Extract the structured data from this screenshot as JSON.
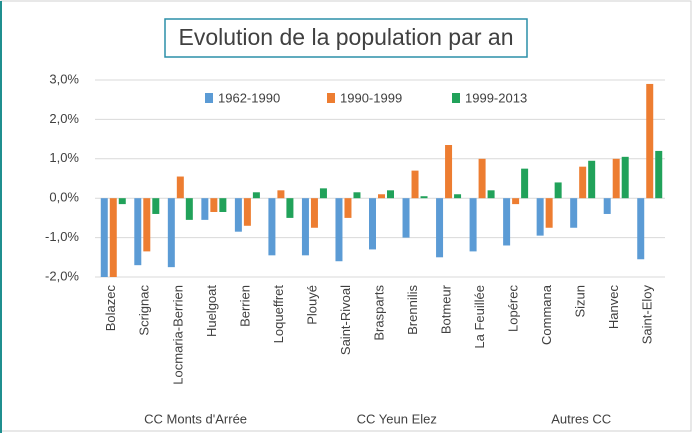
{
  "chart_data": {
    "type": "bar",
    "title": "Evolution de la population par an",
    "categories": [
      "Bolazec",
      "Scrignac",
      "Locmaria-Berrien",
      "Huelgoat",
      "Berrien",
      "Loqueffret",
      "Plouyé",
      "Saint-Rivoal",
      "Brasparts",
      "Brennilis",
      "Botmeur",
      "La Feuillée",
      "Lopérec",
      "Commana",
      "Sizun",
      "Hanvec",
      "Saint-Eloy"
    ],
    "series": [
      {
        "name": "1962-1990",
        "color": "#5b9bd5",
        "values": [
          -2.0,
          -1.7,
          -1.75,
          -0.55,
          -0.85,
          -1.45,
          -1.45,
          -1.6,
          -1.3,
          -1.0,
          -1.5,
          -1.35,
          -1.2,
          -0.95,
          -0.75,
          -0.4,
          -1.55
        ]
      },
      {
        "name": "1990-1999",
        "color": "#ed7d31",
        "values": [
          -2.0,
          -1.35,
          0.55,
          -0.35,
          -0.7,
          0.2,
          -0.75,
          -0.5,
          0.1,
          0.7,
          1.35,
          1.0,
          -0.15,
          -0.75,
          0.8,
          1.0,
          2.9
        ]
      },
      {
        "name": "1999-2013",
        "color": "#21a25a",
        "values": [
          -0.15,
          -0.4,
          -0.55,
          -0.35,
          0.15,
          -0.5,
          0.25,
          0.15,
          0.2,
          0.05,
          0.1,
          0.2,
          0.75,
          0.4,
          0.95,
          1.05,
          1.2
        ]
      }
    ],
    "groups": [
      {
        "name": "CC Monts d'Arrée",
        "members": [
          "Bolazec",
          "Scrignac",
          "Locmaria-Berrien",
          "Huelgoat",
          "Berrien",
          "Loqueffret"
        ]
      },
      {
        "name": "CC Yeun Elez",
        "members": [
          "Plouyé",
          "Saint-Rivoal",
          "Brasparts",
          "Brennilis",
          "Botmeur",
          "La Feuillée"
        ]
      },
      {
        "name": "Autres CC",
        "members": [
          "Lopérec",
          "Commana",
          "Sizun",
          "Hanvec",
          "Saint-Eloy"
        ]
      }
    ],
    "ylim": [
      -2,
      3
    ],
    "yticks": [
      {
        "value": -2,
        "label": "-2,0%"
      },
      {
        "value": -1,
        "label": "-1,0%"
      },
      {
        "value": 0,
        "label": "0,0%"
      },
      {
        "value": 1,
        "label": "1,0%"
      },
      {
        "value": 2,
        "label": "2,0%"
      },
      {
        "value": 3,
        "label": "3,0%"
      }
    ],
    "grid": true,
    "legend": "top"
  }
}
